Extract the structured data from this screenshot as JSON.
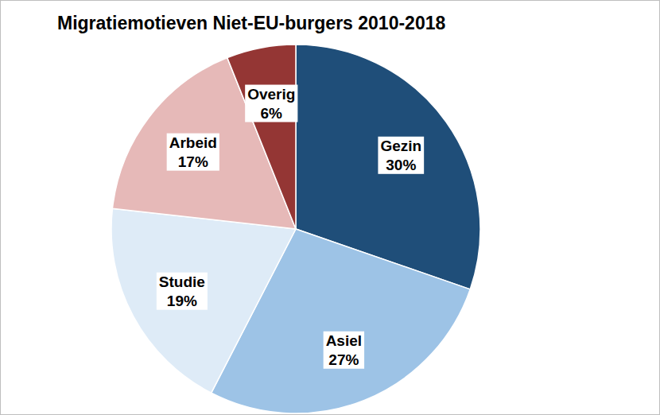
{
  "chart_data": {
    "type": "pie",
    "title": "Migratiemotieven Niet-EU-burgers 2010-2018",
    "categories": [
      "Gezin",
      "Asiel",
      "Studie",
      "Arbeid",
      "Overig"
    ],
    "values": [
      30,
      27,
      19,
      17,
      6
    ],
    "value_labels": [
      "30%",
      "27%",
      "19%",
      "17%",
      "6%"
    ],
    "colors": [
      "#1f4e79",
      "#9dc3e6",
      "#deebf7",
      "#e6b9b8",
      "#943634"
    ],
    "data_labels": true
  }
}
